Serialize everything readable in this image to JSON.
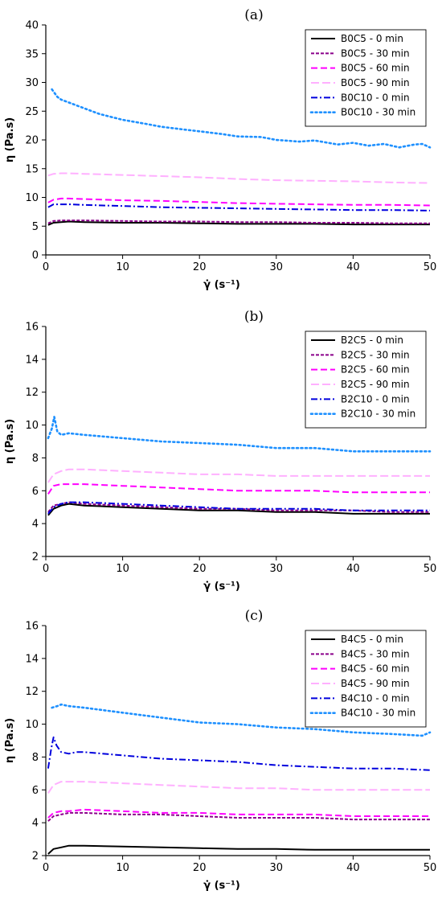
{
  "chart_data": [
    {
      "type": "line",
      "title": "(a)",
      "xlabel": "γ̇ (s⁻¹)",
      "ylabel": "η (Pa.s)",
      "xlim": [
        0,
        50
      ],
      "ylim": [
        0,
        40
      ],
      "xticks": [
        0,
        10,
        20,
        30,
        40,
        50
      ],
      "yticks": [
        0,
        5,
        10,
        15,
        20,
        25,
        30,
        35,
        40
      ],
      "legend_position": "top-right",
      "grid": false,
      "series": [
        {
          "name": "B0C5 - 0 min",
          "color": "#000000",
          "dash": "solid",
          "x": [
            0.3,
            1,
            2,
            3,
            5,
            10,
            15,
            20,
            25,
            30,
            35,
            40,
            45,
            50
          ],
          "values": [
            5.2,
            5.6,
            5.7,
            5.8,
            5.7,
            5.6,
            5.6,
            5.5,
            5.4,
            5.4,
            5.4,
            5.3,
            5.3,
            5.3
          ]
        },
        {
          "name": "B0C5 - 30 min",
          "color": "#8b008b",
          "dash": "dashdot-fine",
          "x": [
            0.3,
            1,
            2,
            3,
            5,
            10,
            15,
            20,
            25,
            30,
            35,
            40,
            45,
            50
          ],
          "values": [
            5.5,
            5.9,
            6.0,
            6.0,
            6.0,
            5.9,
            5.8,
            5.8,
            5.7,
            5.7,
            5.6,
            5.6,
            5.5,
            5.5
          ]
        },
        {
          "name": "B0C5 - 60 min",
          "color": "#ff00ff",
          "dash": "dashed",
          "x": [
            0.3,
            1,
            2,
            3,
            5,
            10,
            15,
            20,
            25,
            30,
            35,
            40,
            45,
            50
          ],
          "values": [
            9.1,
            9.6,
            9.8,
            9.8,
            9.7,
            9.5,
            9.4,
            9.2,
            9.0,
            8.9,
            8.8,
            8.7,
            8.7,
            8.6
          ]
        },
        {
          "name": "B0C5 - 90 min",
          "color": "#ffb0ff",
          "dash": "dashed-long",
          "x": [
            0.3,
            1,
            2,
            3,
            5,
            10,
            15,
            20,
            25,
            30,
            35,
            40,
            45,
            50
          ],
          "values": [
            13.8,
            14.1,
            14.2,
            14.2,
            14.1,
            13.9,
            13.7,
            13.5,
            13.2,
            13.0,
            12.9,
            12.8,
            12.6,
            12.5
          ]
        },
        {
          "name": "B0C10 - 0 min",
          "color": "#0000dd",
          "dash": "dashdot",
          "x": [
            0.3,
            1,
            2,
            3,
            5,
            10,
            15,
            20,
            25,
            30,
            35,
            40,
            45,
            50
          ],
          "values": [
            8.3,
            8.8,
            8.8,
            8.8,
            8.7,
            8.5,
            8.3,
            8.2,
            8.1,
            8.0,
            7.9,
            7.8,
            7.8,
            7.7
          ]
        },
        {
          "name": "B0C10 - 30 min",
          "color": "#1e90ff",
          "dash": "dotted",
          "x": [
            0.8,
            1.5,
            2,
            3,
            5,
            7,
            10,
            13,
            15,
            18,
            20,
            23,
            25,
            28,
            30,
            33,
            35,
            38,
            40,
            42,
            44,
            46,
            48,
            49,
            50
          ],
          "values": [
            28.8,
            27.5,
            27.0,
            26.5,
            25.5,
            24.5,
            23.5,
            22.8,
            22.3,
            21.8,
            21.5,
            21.0,
            20.6,
            20.5,
            20.0,
            19.7,
            19.9,
            19.2,
            19.5,
            19.0,
            19.3,
            18.7,
            19.2,
            19.3,
            18.7
          ]
        }
      ]
    },
    {
      "type": "line",
      "title": "(b)",
      "xlabel": "γ̇ (s⁻¹)",
      "ylabel": "η (Pa.s)",
      "xlim": [
        0,
        50
      ],
      "ylim": [
        2,
        16
      ],
      "xticks": [
        0,
        10,
        20,
        30,
        40,
        50
      ],
      "yticks": [
        2,
        4,
        6,
        8,
        10,
        12,
        14,
        16
      ],
      "legend_position": "top-right",
      "grid": false,
      "series": [
        {
          "name": "B2C5 - 0 min",
          "color": "#000000",
          "dash": "solid",
          "x": [
            0.3,
            1,
            2,
            3,
            5,
            10,
            15,
            20,
            25,
            30,
            35,
            40,
            45,
            50
          ],
          "values": [
            4.5,
            4.9,
            5.1,
            5.2,
            5.1,
            5.0,
            4.9,
            4.8,
            4.8,
            4.7,
            4.7,
            4.6,
            4.6,
            4.6
          ]
        },
        {
          "name": "B2C5 - 30 min",
          "color": "#8b008b",
          "dash": "dashdot-fine",
          "x": [
            0.3,
            1,
            2,
            3,
            5,
            10,
            15,
            20,
            25,
            30,
            35,
            40,
            45,
            50
          ],
          "values": [
            4.7,
            5.1,
            5.2,
            5.3,
            5.2,
            5.1,
            5.0,
            4.9,
            4.9,
            4.8,
            4.8,
            4.8,
            4.7,
            4.7
          ]
        },
        {
          "name": "B2C5 - 60 min",
          "color": "#ff00ff",
          "dash": "dashed",
          "x": [
            0.3,
            1,
            2,
            3,
            5,
            10,
            15,
            20,
            25,
            30,
            35,
            40,
            45,
            50
          ],
          "values": [
            5.8,
            6.3,
            6.4,
            6.4,
            6.4,
            6.3,
            6.2,
            6.1,
            6.0,
            6.0,
            6.0,
            5.9,
            5.9,
            5.9
          ]
        },
        {
          "name": "B2C5 - 90 min",
          "color": "#ffb0ff",
          "dash": "dashed-long",
          "x": [
            0.3,
            1,
            2,
            3,
            5,
            10,
            15,
            20,
            25,
            30,
            35,
            40,
            45,
            50
          ],
          "values": [
            6.5,
            7.0,
            7.2,
            7.3,
            7.3,
            7.2,
            7.1,
            7.0,
            7.0,
            6.9,
            6.9,
            6.9,
            6.9,
            6.9
          ]
        },
        {
          "name": "B2C10 - 0 min",
          "color": "#0000dd",
          "dash": "dashdot",
          "x": [
            0.3,
            1,
            2,
            3,
            5,
            10,
            15,
            20,
            25,
            30,
            35,
            40,
            45,
            50
          ],
          "values": [
            4.6,
            5.0,
            5.2,
            5.3,
            5.3,
            5.2,
            5.1,
            5.0,
            4.9,
            4.9,
            4.9,
            4.8,
            4.8,
            4.8
          ]
        },
        {
          "name": "B2C10 - 30 min",
          "color": "#1e90ff",
          "dash": "dotted",
          "x": [
            0.3,
            0.8,
            1.1,
            1.5,
            2,
            3,
            5,
            10,
            15,
            20,
            25,
            30,
            35,
            40,
            45,
            50
          ],
          "values": [
            9.2,
            9.8,
            10.5,
            9.6,
            9.4,
            9.5,
            9.4,
            9.2,
            9.0,
            8.9,
            8.8,
            8.6,
            8.6,
            8.4,
            8.4,
            8.4
          ]
        }
      ]
    },
    {
      "type": "line",
      "title": "(c)",
      "xlabel": "γ̇ (s⁻¹)",
      "ylabel": "η (Pa.s)",
      "xlim": [
        0,
        50
      ],
      "ylim": [
        2,
        16
      ],
      "xticks": [
        0,
        10,
        20,
        30,
        40,
        50
      ],
      "yticks": [
        2,
        4,
        6,
        8,
        10,
        12,
        14,
        16
      ],
      "legend_position": "top-right",
      "grid": false,
      "series": [
        {
          "name": "B4C5 - 0 min",
          "color": "#000000",
          "dash": "solid",
          "x": [
            0.3,
            1,
            2,
            3,
            5,
            10,
            15,
            20,
            25,
            30,
            35,
            40,
            45,
            50
          ],
          "values": [
            2.1,
            2.4,
            2.5,
            2.6,
            2.6,
            2.55,
            2.5,
            2.45,
            2.4,
            2.4,
            2.35,
            2.35,
            2.35,
            2.35
          ]
        },
        {
          "name": "B4C5 - 30 min",
          "color": "#8b008b",
          "dash": "dashdot-fine",
          "x": [
            0.3,
            1,
            2,
            3,
            5,
            10,
            15,
            20,
            25,
            30,
            35,
            40,
            45,
            50
          ],
          "values": [
            4.1,
            4.4,
            4.5,
            4.6,
            4.6,
            4.5,
            4.5,
            4.4,
            4.3,
            4.3,
            4.3,
            4.2,
            4.2,
            4.2
          ]
        },
        {
          "name": "B4C5 - 60 min",
          "color": "#ff00ff",
          "dash": "dashed",
          "x": [
            0.3,
            1,
            2,
            3,
            5,
            10,
            15,
            20,
            25,
            30,
            35,
            40,
            45,
            50
          ],
          "values": [
            4.3,
            4.6,
            4.7,
            4.7,
            4.8,
            4.7,
            4.6,
            4.6,
            4.5,
            4.5,
            4.5,
            4.4,
            4.4,
            4.4
          ]
        },
        {
          "name": "B4C5 - 90 min",
          "color": "#ffb0ff",
          "dash": "dashed-long",
          "x": [
            0.3,
            1,
            2,
            3,
            5,
            10,
            15,
            20,
            25,
            30,
            35,
            40,
            45,
            50
          ],
          "values": [
            5.8,
            6.3,
            6.5,
            6.5,
            6.5,
            6.4,
            6.3,
            6.2,
            6.1,
            6.1,
            6.0,
            6.0,
            6.0,
            6.0
          ]
        },
        {
          "name": "B4C10 - 0 min",
          "color": "#0000dd",
          "dash": "dashdot",
          "x": [
            0.3,
            0.7,
            1,
            1.4,
            2,
            3,
            4,
            5,
            10,
            15,
            20,
            25,
            30,
            35,
            40,
            45,
            50
          ],
          "values": [
            7.3,
            8.5,
            9.2,
            8.7,
            8.3,
            8.2,
            8.3,
            8.3,
            8.1,
            7.9,
            7.8,
            7.7,
            7.5,
            7.4,
            7.3,
            7.3,
            7.2
          ]
        },
        {
          "name": "B4C10 - 30 min",
          "color": "#1e90ff",
          "dash": "dotted",
          "x": [
            0.8,
            1.5,
            2,
            3,
            5,
            10,
            15,
            20,
            25,
            30,
            35,
            40,
            45,
            49,
            50
          ],
          "values": [
            11.0,
            11.1,
            11.2,
            11.1,
            11.0,
            10.7,
            10.4,
            10.1,
            10.0,
            9.8,
            9.7,
            9.5,
            9.4,
            9.3,
            9.5
          ]
        }
      ]
    }
  ]
}
